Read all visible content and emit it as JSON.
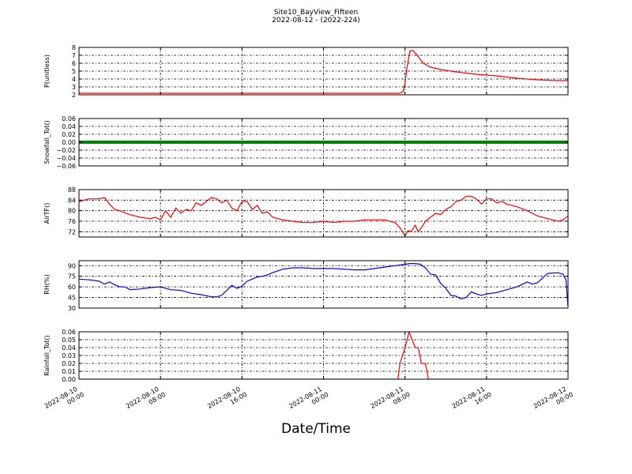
{
  "title": "Site10_BayView_Fifteen",
  "subtitle": "2022-08-12 - (2022-224)",
  "xlabel": "Date/Time",
  "x_ticks": [
    {
      "line1": "2022-08-10",
      "line2": "00:00",
      "t": 0
    },
    {
      "line1": "2022-08-10",
      "line2": "08:00",
      "t": 8
    },
    {
      "line1": "2022-08-10",
      "line2": "16:00",
      "t": 16
    },
    {
      "line1": "2022-08-11",
      "line2": "00:00",
      "t": 24
    },
    {
      "line1": "2022-08-11",
      "line2": "08:00",
      "t": 32
    },
    {
      "line1": "2022-08-11",
      "line2": "16:00",
      "t": 40
    },
    {
      "line1": "2022-08-12",
      "line2": "00:00",
      "t": 48
    }
  ],
  "chart_data": [
    {
      "type": "line",
      "ylabel": "P(unitless)",
      "ylim": [
        2,
        8
      ],
      "yticks": [
        2,
        3,
        4,
        5,
        6,
        7,
        8
      ],
      "ytick_labels": [
        "2",
        "3",
        "4",
        "5",
        "6",
        "7",
        "8"
      ],
      "color": "#ff0000",
      "grid": true,
      "x_hours": [
        0,
        8,
        16,
        24,
        31.5,
        31.8,
        32,
        32.2,
        32.5,
        32.8,
        33.3,
        33.8,
        34.5,
        35.5,
        37,
        39,
        41,
        43,
        45,
        47,
        48
      ],
      "y": [
        2.2,
        2.2,
        2.2,
        2.2,
        2.2,
        2.4,
        3.5,
        5.5,
        7.6,
        7.6,
        6.8,
        6.0,
        5.5,
        5.2,
        4.9,
        4.6,
        4.4,
        4.1,
        3.9,
        3.8,
        3.8
      ]
    },
    {
      "type": "line",
      "ylabel": "Snowfall_Tot()",
      "ylim": [
        -0.06,
        0.06
      ],
      "yticks": [
        -0.06,
        -0.04,
        -0.02,
        0,
        0.02,
        0.04,
        0.06
      ],
      "ytick_labels": [
        "−0.06",
        "−0.04",
        "−0.02",
        "0.00",
        "0.02",
        "0.04",
        "0.06"
      ],
      "color": "#008000",
      "grid": true,
      "x_hours": [
        0,
        48
      ],
      "y": [
        0,
        0
      ]
    },
    {
      "type": "line",
      "ylabel": "AirTF()",
      "ylim": [
        70,
        88
      ],
      "yticks": [
        72,
        76,
        80,
        84,
        88
      ],
      "ytick_labels": [
        "72",
        "76",
        "80",
        "84",
        "88"
      ],
      "color": "#ff0000",
      "grid": true,
      "x_hours": [
        0,
        1,
        2,
        2.5,
        3,
        3.5,
        4,
        5,
        6,
        7,
        7.5,
        8,
        8.5,
        9,
        9.5,
        10,
        10.5,
        11,
        11.5,
        12,
        12.5,
        13,
        13.5,
        14,
        14.5,
        15,
        15.5,
        16,
        16.5,
        17,
        17.5,
        18,
        18.5,
        19,
        20,
        21,
        22,
        23,
        24,
        25,
        26,
        27,
        28,
        29,
        30,
        31,
        31.5,
        32,
        32.3,
        32.6,
        33,
        33.3,
        33.6,
        34,
        34.5,
        35,
        35.5,
        36,
        36.5,
        37,
        37.5,
        38,
        38.5,
        39,
        39.5,
        40,
        40.5,
        41,
        41.5,
        42,
        43,
        44,
        45,
        46,
        47,
        47.5,
        48
      ],
      "y": [
        83.5,
        84.5,
        84.5,
        85,
        82.5,
        80.5,
        80,
        78.5,
        77.5,
        77,
        77.5,
        76.5,
        80,
        77.5,
        81,
        79,
        80.5,
        80,
        83,
        82,
        83.5,
        85,
        84.5,
        83,
        84,
        81,
        80,
        83.5,
        83.5,
        80.5,
        82,
        79,
        79.5,
        77.5,
        76.5,
        76,
        75.5,
        75.5,
        76,
        75.5,
        76,
        76,
        76.5,
        76.5,
        76.5,
        75.5,
        73.5,
        70.5,
        72.5,
        72,
        74.5,
        72,
        73.5,
        76,
        77.5,
        79,
        78.5,
        80.5,
        81.5,
        83.5,
        84,
        85.5,
        85.5,
        84.5,
        82.5,
        84.5,
        84.5,
        83,
        83.5,
        82.5,
        81.5,
        80,
        78,
        77,
        76,
        76.5,
        78
      ]
    },
    {
      "type": "line",
      "ylabel": "RH(%)",
      "ylim": [
        30,
        97
      ],
      "yticks": [
        30,
        45,
        60,
        75,
        90
      ],
      "ytick_labels": [
        "30",
        "45",
        "60",
        "75",
        "90"
      ],
      "color": "#0000ff",
      "grid": true,
      "x_hours": [
        0,
        1,
        2,
        2.5,
        3,
        3.5,
        4,
        4.5,
        5,
        6,
        7,
        8,
        9,
        10,
        11,
        12,
        13,
        13.5,
        14,
        14.5,
        15,
        15.5,
        16,
        16.5,
        17,
        17.5,
        18,
        18.5,
        19,
        20,
        21,
        22,
        23,
        24,
        25,
        26,
        27,
        28,
        29,
        30,
        31,
        32,
        32.5,
        33,
        33.5,
        34,
        34.5,
        35,
        35.5,
        36,
        36.5,
        37,
        37.5,
        38,
        38.5,
        39,
        39.5,
        40,
        41,
        42,
        43,
        44,
        44.5,
        45,
        46,
        47,
        47.5,
        47.8,
        48
      ],
      "y": [
        71,
        70,
        68,
        64,
        67,
        63,
        60,
        60,
        56,
        57,
        59,
        60,
        56,
        55,
        51,
        49,
        46,
        46,
        48,
        55,
        62,
        58,
        61,
        68,
        71,
        74,
        75,
        77,
        80,
        85,
        87,
        87,
        86,
        86,
        86,
        85,
        84,
        84,
        86,
        88,
        90,
        92,
        93,
        93,
        92,
        87,
        78,
        77,
        65,
        58,
        48,
        47,
        43,
        45,
        53,
        50,
        48,
        50,
        52,
        56,
        60,
        67,
        64,
        66,
        79,
        80,
        78,
        70,
        32
      ]
    },
    {
      "type": "line",
      "ylabel": "Rainfall_Tot()",
      "ylim": [
        0,
        0.06
      ],
      "yticks": [
        0,
        0.01,
        0.02,
        0.03,
        0.04,
        0.05,
        0.06
      ],
      "ytick_labels": [
        "0.00",
        "0.01",
        "0.02",
        "0.03",
        "0.04",
        "0.05",
        "0.06"
      ],
      "color": "#ff0000",
      "grid": true,
      "x_hours": [
        0,
        31.3,
        31.5,
        32,
        32.4,
        32.7,
        33,
        33.3,
        33.6,
        34,
        34.3,
        34.6,
        48
      ],
      "y": [
        0,
        0,
        0.02,
        0.04,
        0.06,
        0.05,
        0.04,
        0.04,
        0.02,
        0.02,
        0,
        0,
        0
      ]
    }
  ]
}
